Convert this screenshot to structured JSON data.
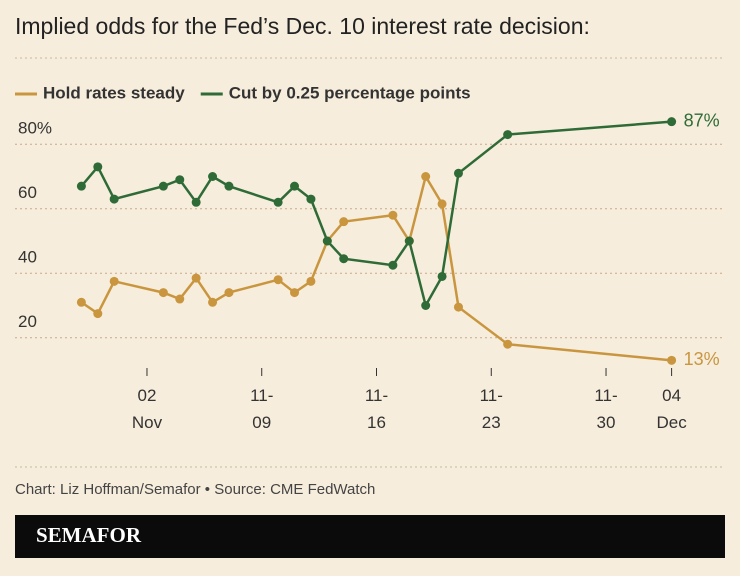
{
  "chart_data": {
    "type": "line",
    "title": "Implied odds for the Fed’s Dec. 10 interest rate decision:",
    "source": "Chart: Liz Hoffman/Semafor • Source: CME FedWatch",
    "brand": "SEMAFOR",
    "x": [
      "10-29",
      "10-30",
      "10-31",
      "11-03",
      "11-04",
      "11-05",
      "11-06",
      "11-07",
      "11-10",
      "11-11",
      "11-12",
      "11-13",
      "11-14",
      "11-17",
      "11-18",
      "11-19",
      "11-20",
      "11-21",
      "11-24",
      "12-04"
    ],
    "series": [
      {
        "name": "Hold rates steady",
        "color": "#c9963f",
        "values": [
          31,
          27.5,
          37.5,
          34,
          32,
          38.5,
          31,
          34,
          38,
          34,
          37.5,
          50,
          56,
          58,
          50,
          70,
          61.5,
          29.5,
          18,
          13
        ],
        "value_labels": [
          null,
          null,
          null,
          null,
          null,
          null,
          null,
          null,
          null,
          null,
          null,
          null,
          null,
          null,
          null,
          null,
          null,
          null,
          null,
          "13%"
        ]
      },
      {
        "name": "Cut by 0.25 percentage points",
        "color": "#2f6b36",
        "values": [
          67,
          73,
          63,
          67,
          69,
          62,
          70,
          67,
          62,
          67,
          63,
          50,
          44.5,
          42.5,
          50,
          30,
          39,
          71,
          83,
          87
        ],
        "value_labels": [
          null,
          null,
          null,
          null,
          null,
          null,
          null,
          null,
          null,
          null,
          null,
          null,
          null,
          null,
          null,
          null,
          null,
          null,
          null,
          "87%"
        ]
      }
    ],
    "xlim": [
      "10-28",
      "12-05"
    ],
    "xticks": [
      {
        "value": "11-02",
        "label": "02 Nov"
      },
      "11-09",
      "11-16",
      "11-23",
      "11-30",
      {
        "value": "12-04",
        "label": "04 Dec"
      }
    ],
    "ylim": [
      10,
      90
    ],
    "yticks": [
      20,
      40,
      60,
      {
        "value": 80,
        "label": "80%"
      }
    ],
    "grid": true
  }
}
